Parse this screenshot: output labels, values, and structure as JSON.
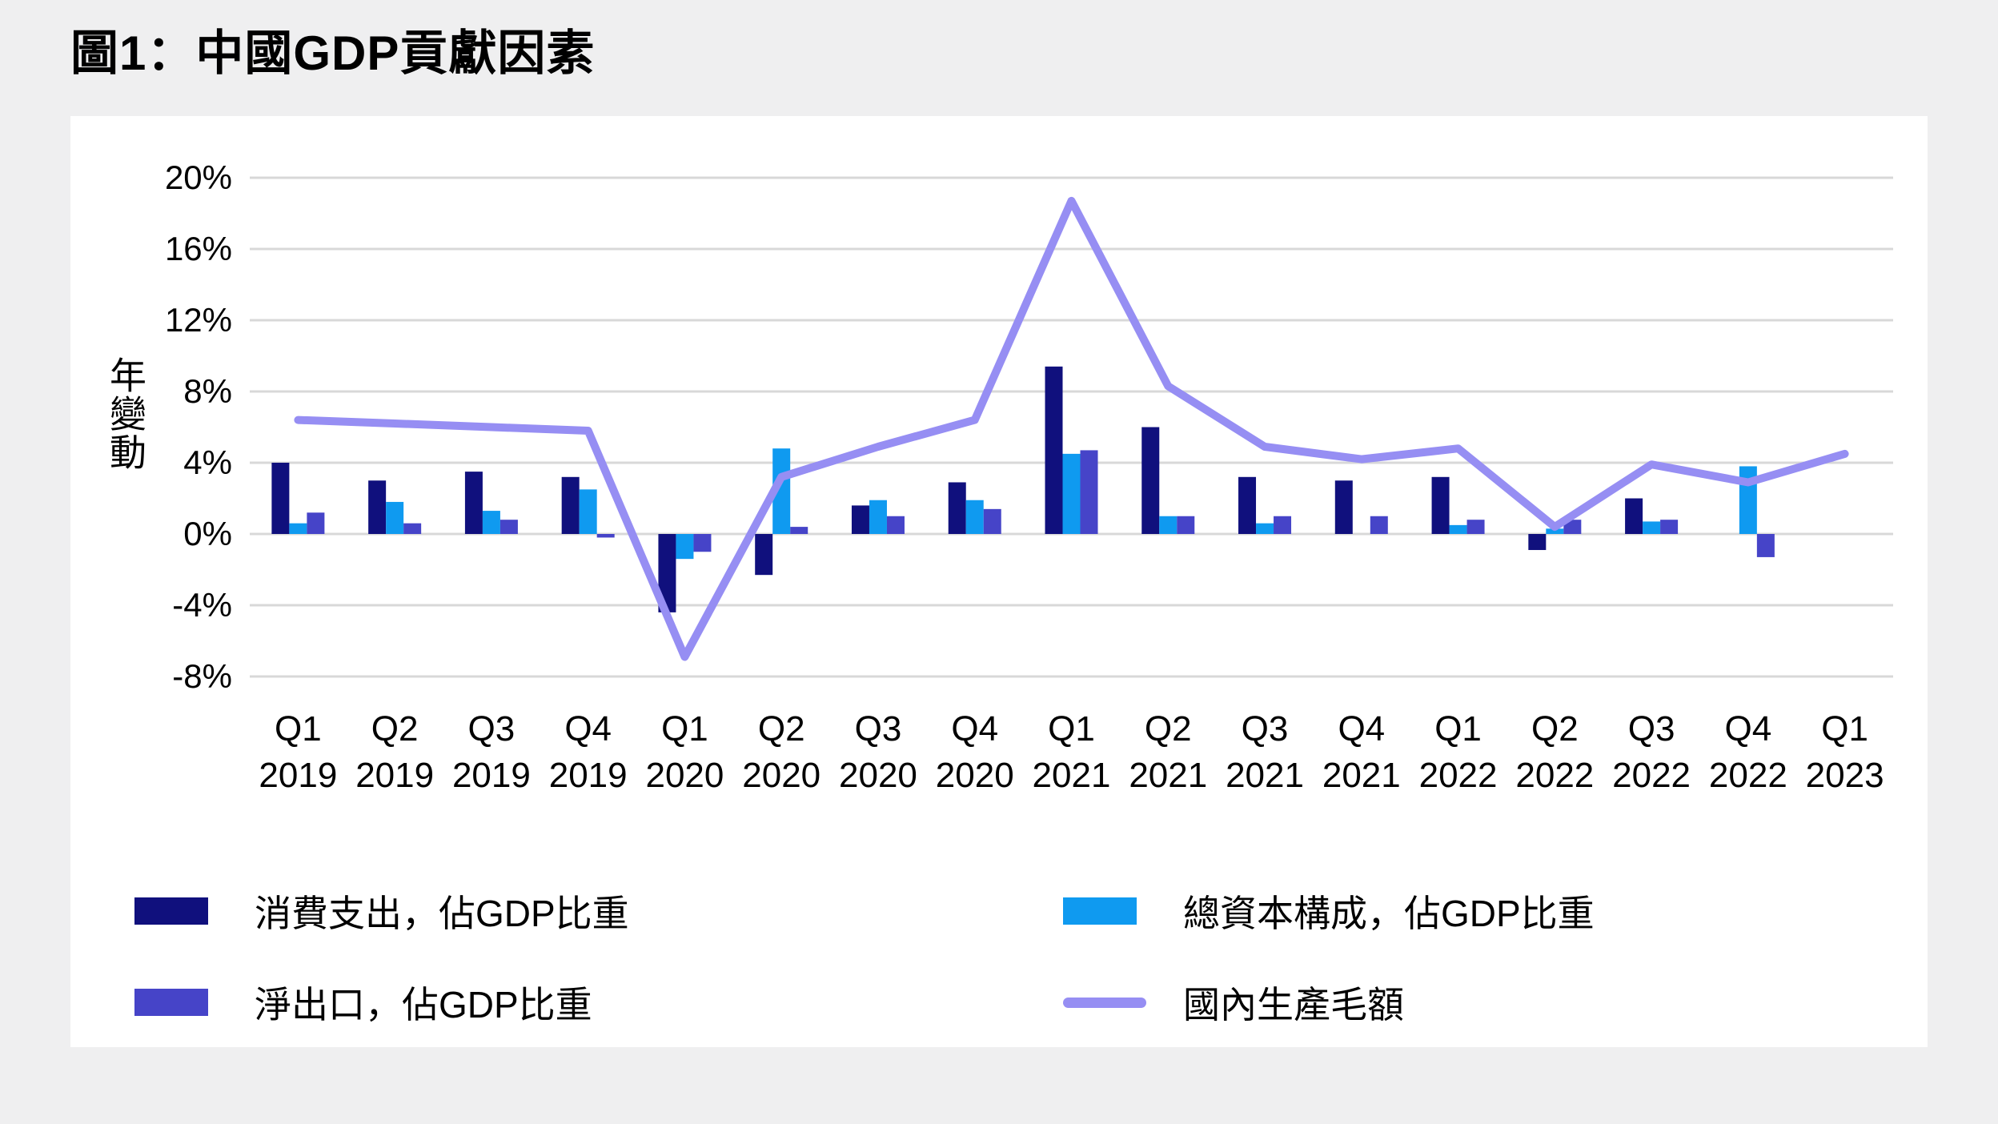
{
  "page": {
    "title": "圖1：中國GDP貢獻因素",
    "background_color": "#efeff0",
    "card_color": "#ffffff"
  },
  "chart_data": {
    "type": "bar",
    "subtype": "grouped-bars-with-line-overlay",
    "title": "圖1：中國GDP貢獻因素",
    "xlabel": "",
    "ylabel": "年變動",
    "ylim": [
      -8,
      20
    ],
    "ytick_values": [
      20,
      16,
      12,
      8,
      4,
      0,
      -4,
      -8
    ],
    "ytick_labels": [
      "20%",
      "16%",
      "12%",
      "8%",
      "4%",
      "0%",
      "-4%",
      "-8%"
    ],
    "grid": true,
    "gridline_color": "#d8d8d8",
    "legend_position": "bottom",
    "categories": [
      "Q1 2019",
      "Q2 2019",
      "Q3 2019",
      "Q4 2019",
      "Q1 2020",
      "Q2 2020",
      "Q3 2020",
      "Q4 2020",
      "Q1 2021",
      "Q2 2021",
      "Q3 2021",
      "Q4 2021",
      "Q1 2022",
      "Q2 2022",
      "Q3 2022",
      "Q4 2022",
      "Q1 2023"
    ],
    "series": [
      {
        "name": "消費支出，佔GDP比重",
        "kind": "bar",
        "color": "#10107d",
        "values": [
          4.0,
          3.0,
          3.5,
          3.2,
          -4.4,
          -2.3,
          1.6,
          2.9,
          9.4,
          6.0,
          3.2,
          3.0,
          3.2,
          -0.9,
          2.0,
          0,
          null
        ]
      },
      {
        "name": "總資本構成，佔GDP比重",
        "kind": "bar",
        "color": "#0f9af0",
        "values": [
          0.6,
          1.8,
          1.3,
          2.5,
          -1.4,
          4.8,
          1.9,
          1.9,
          4.5,
          1.0,
          0.6,
          0,
          0.5,
          0.3,
          0.7,
          3.8,
          null
        ]
      },
      {
        "name": "淨出口，佔GDP比重",
        "kind": "bar",
        "color": "#4644c8",
        "values": [
          1.2,
          0.6,
          0.8,
          -0.2,
          -1.0,
          0.4,
          1.0,
          1.4,
          4.7,
          1.0,
          1.0,
          1.0,
          0.8,
          0.8,
          0.8,
          -1.3,
          null
        ]
      },
      {
        "name": "國內生產毛額",
        "kind": "line",
        "color": "#968ef3",
        "values": [
          6.4,
          6.2,
          6.0,
          5.8,
          -6.9,
          3.2,
          4.9,
          6.4,
          18.7,
          8.3,
          4.9,
          4.2,
          4.8,
          0.4,
          3.9,
          2.9,
          4.5
        ]
      }
    ]
  }
}
